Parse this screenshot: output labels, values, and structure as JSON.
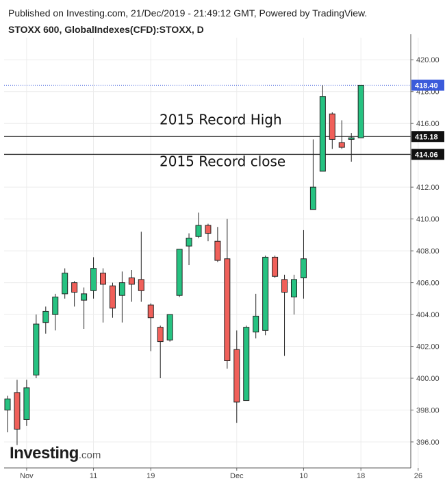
{
  "header": {
    "published": "Published on Investing.com, 21/Dec/2019 - 21:49:12 GMT, Powered by TradingView.",
    "symbol": "STOXX 600, GlobalIndexes(CFD):STOXX, D"
  },
  "logo": {
    "main": "Investing",
    "suffix": ".com"
  },
  "colors": {
    "up": "#26c281",
    "down": "#f0605a",
    "outline": "#222222",
    "dotted_line": "#3b5bdb"
  },
  "chart_data": {
    "type": "candlestick",
    "title": "STOXX 600, GlobalIndexes(CFD):STOXX, D",
    "ylim": [
      394.5,
      421
    ],
    "y_ticks": [
      396,
      398,
      400,
      402,
      404,
      406,
      408,
      410,
      412,
      414,
      416,
      418,
      420
    ],
    "y_tick_labels": [
      "396.00",
      "398.00",
      "400.00",
      "402.00",
      "404.00",
      "406.00",
      "408.00",
      "410.00",
      "412.00",
      "414.00",
      "416.00",
      "418.00",
      "420.00"
    ],
    "x_ticks": [
      {
        "label": "Nov",
        "index": 2
      },
      {
        "label": "11",
        "index": 9
      },
      {
        "label": "19",
        "index": 15
      },
      {
        "label": "Dec",
        "index": 24
      },
      {
        "label": "10",
        "index": 31
      },
      {
        "label": "18",
        "index": 37
      },
      {
        "label": "26",
        "index": 43
      }
    ],
    "candles": [
      {
        "o": 398.0,
        "h": 398.9,
        "l": 396.6,
        "c": 398.7
      },
      {
        "o": 399.1,
        "h": 399.9,
        "l": 395.8,
        "c": 396.8
      },
      {
        "o": 397.4,
        "h": 399.9,
        "l": 397.0,
        "c": 399.4
      },
      {
        "o": 400.2,
        "h": 404.0,
        "l": 400.0,
        "c": 403.4
      },
      {
        "o": 403.5,
        "h": 404.5,
        "l": 402.8,
        "c": 404.2
      },
      {
        "o": 404.0,
        "h": 405.3,
        "l": 403.0,
        "c": 405.1
      },
      {
        "o": 405.3,
        "h": 406.9,
        "l": 405.0,
        "c": 406.6
      },
      {
        "o": 406.0,
        "h": 406.1,
        "l": 404.5,
        "c": 405.4
      },
      {
        "o": 404.9,
        "h": 405.7,
        "l": 403.1,
        "c": 405.3
      },
      {
        "o": 405.5,
        "h": 407.6,
        "l": 405.0,
        "c": 406.9
      },
      {
        "o": 406.6,
        "h": 406.9,
        "l": 403.5,
        "c": 405.9
      },
      {
        "o": 405.8,
        "h": 406.0,
        "l": 403.8,
        "c": 404.4
      },
      {
        "o": 405.2,
        "h": 406.7,
        "l": 403.5,
        "c": 406.0
      },
      {
        "o": 406.3,
        "h": 406.8,
        "l": 404.8,
        "c": 405.9
      },
      {
        "o": 406.2,
        "h": 409.2,
        "l": 404.8,
        "c": 405.5
      },
      {
        "o": 404.6,
        "h": 404.7,
        "l": 401.7,
        "c": 403.8
      },
      {
        "o": 403.2,
        "h": 403.3,
        "l": 400.0,
        "c": 402.3
      },
      {
        "o": 402.4,
        "h": 404.0,
        "l": 402.3,
        "c": 404.0
      },
      {
        "o": 405.2,
        "h": 408.1,
        "l": 405.1,
        "c": 408.1
      },
      {
        "o": 408.3,
        "h": 409.1,
        "l": 407.1,
        "c": 408.8
      },
      {
        "o": 408.9,
        "h": 410.4,
        "l": 408.8,
        "c": 409.6
      },
      {
        "o": 409.6,
        "h": 409.7,
        "l": 408.6,
        "c": 409.1
      },
      {
        "o": 408.6,
        "h": 409.5,
        "l": 407.3,
        "c": 407.4
      },
      {
        "o": 407.5,
        "h": 410.0,
        "l": 400.6,
        "c": 401.1
      },
      {
        "o": 401.8,
        "h": 403.0,
        "l": 397.2,
        "c": 398.5
      },
      {
        "o": 398.6,
        "h": 403.3,
        "l": 398.6,
        "c": 403.2
      },
      {
        "o": 402.9,
        "h": 405.3,
        "l": 402.5,
        "c": 403.9
      },
      {
        "o": 403.0,
        "h": 407.7,
        "l": 402.7,
        "c": 407.6
      },
      {
        "o": 407.6,
        "h": 407.7,
        "l": 406.3,
        "c": 406.4
      },
      {
        "o": 406.2,
        "h": 406.5,
        "l": 401.4,
        "c": 405.4
      },
      {
        "o": 405.1,
        "h": 406.5,
        "l": 404.0,
        "c": 406.2
      },
      {
        "o": 406.3,
        "h": 409.3,
        "l": 405.0,
        "c": 407.5
      },
      {
        "o": 410.6,
        "h": 415.0,
        "l": 410.6,
        "c": 412.0
      },
      {
        "o": 413.0,
        "h": 418.4,
        "l": 413.0,
        "c": 417.7
      },
      {
        "o": 416.6,
        "h": 416.7,
        "l": 414.4,
        "c": 415.0
      },
      {
        "o": 414.8,
        "h": 416.2,
        "l": 414.4,
        "c": 414.5
      },
      {
        "o": 415.0,
        "h": 415.4,
        "l": 413.6,
        "c": 415.1
      },
      {
        "o": 415.1,
        "h": 418.4,
        "l": 415.1,
        "c": 418.4
      }
    ],
    "last_close": {
      "value": 418.4,
      "label": "418.40"
    },
    "levels": [
      {
        "value": 415.18,
        "label": "415.18",
        "annotation": "2015 Record High"
      },
      {
        "value": 414.06,
        "label": "414.06",
        "annotation": "2015 Record close"
      }
    ]
  }
}
